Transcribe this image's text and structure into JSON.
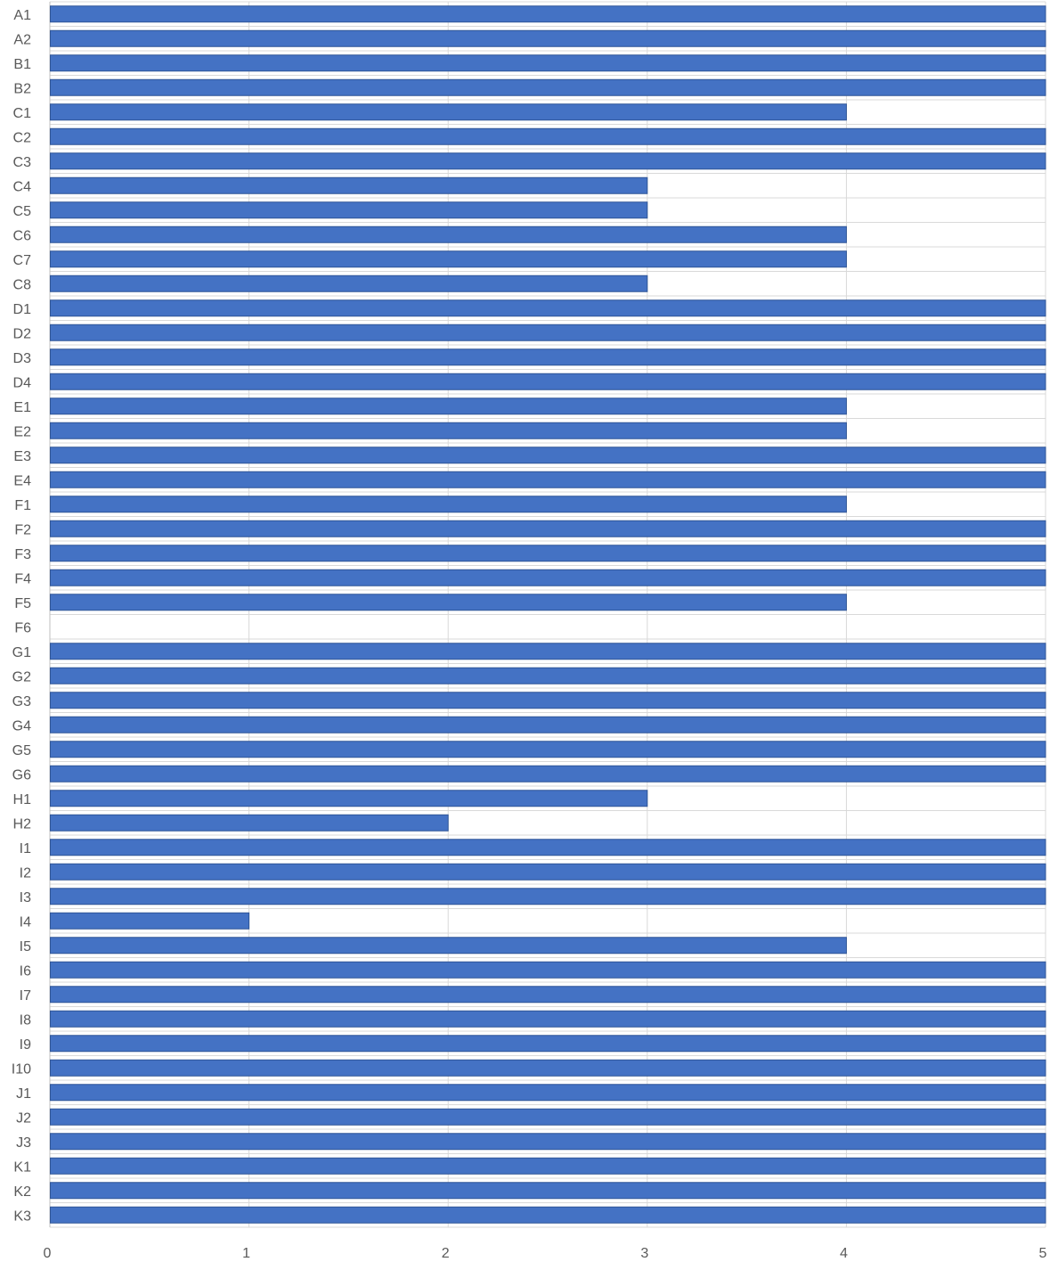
{
  "chart_data": {
    "type": "bar",
    "orientation": "horizontal",
    "title": "",
    "xlabel": "",
    "ylabel": "",
    "xlim": [
      0,
      5
    ],
    "x_ticks": [
      0,
      1,
      2,
      3,
      4,
      5
    ],
    "grid": true,
    "legend": "none",
    "colors": {
      "bar_fill": "#4472C4",
      "bar_edge": "#2F5597",
      "grid": "#D9D9D9",
      "text": "#595959"
    },
    "categories": [
      "A1",
      "A2",
      "B1",
      "B2",
      "C1",
      "C2",
      "C3",
      "C4",
      "C5",
      "C6",
      "C7",
      "C8",
      "D1",
      "D2",
      "D3",
      "D4",
      "E1",
      "E2",
      "E3",
      "E4",
      "F1",
      "F2",
      "F3",
      "F4",
      "F5",
      "F6",
      "G1",
      "G2",
      "G3",
      "G4",
      "G5",
      "G6",
      "H1",
      "H2",
      "I1",
      "I2",
      "I3",
      "I4",
      "I5",
      "I6",
      "I7",
      "I8",
      "I9",
      "I10",
      "J1",
      "J2",
      "J3",
      "K1",
      "K2",
      "K3"
    ],
    "values": [
      5,
      5,
      5,
      5,
      4,
      5,
      5,
      3,
      3,
      4,
      4,
      3,
      5,
      5,
      5,
      5,
      4,
      4,
      5,
      5,
      4,
      5,
      5,
      5,
      4,
      0,
      5,
      5,
      5,
      5,
      5,
      5,
      3,
      2,
      5,
      5,
      5,
      1,
      4,
      5,
      5,
      5,
      5,
      5,
      5,
      5,
      5,
      5,
      5,
      5
    ]
  }
}
